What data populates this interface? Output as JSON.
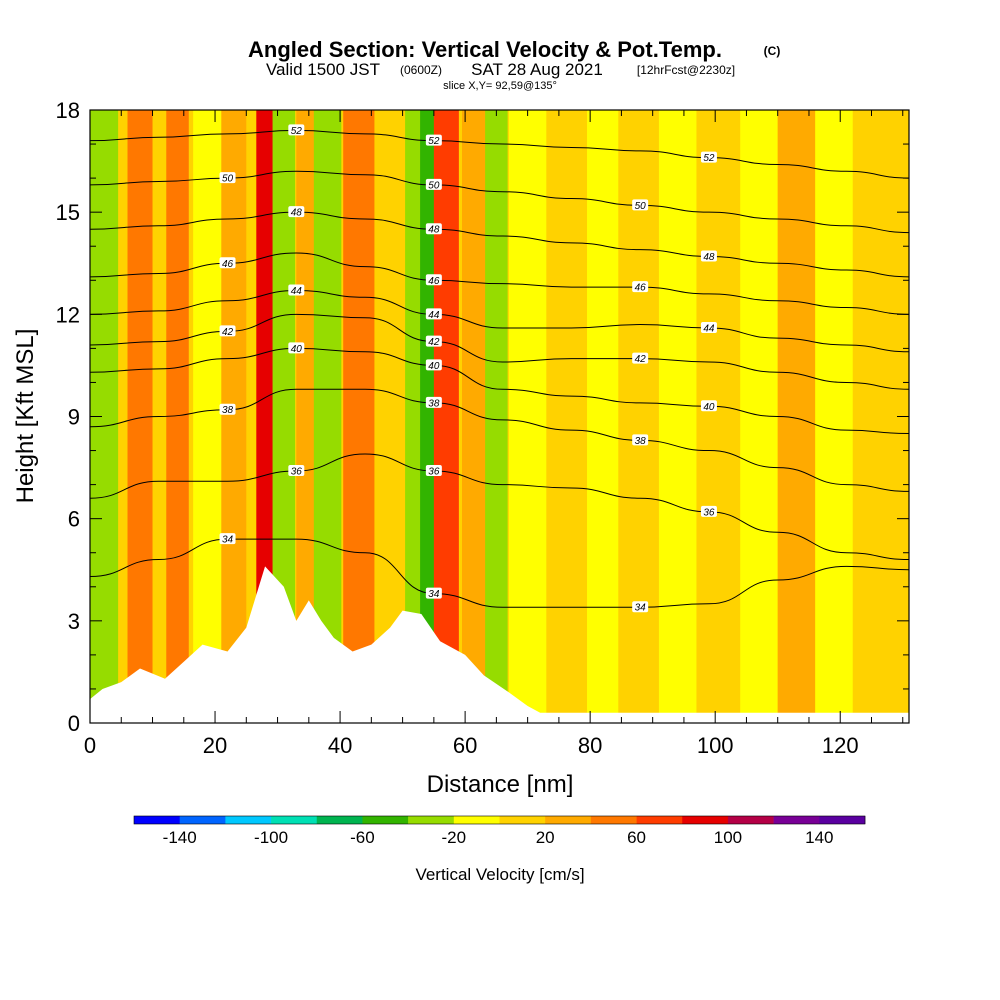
{
  "chart_data": {
    "type": "heatmap",
    "title": "Angled Section: Vertical Velocity & Pot.Temp.",
    "title_units": "(C)",
    "subtitle": {
      "valid": "Valid 1500 JST",
      "zulu": "(0600Z)",
      "date": "SAT 28 Aug 2021",
      "forecast": "[12hrFcst@2230z]"
    },
    "slice_label": "slice X,Y= 92,59@135°",
    "xlabel": "Distance [nm]",
    "ylabel": "Height [Kft MSL]",
    "xlim": [
      0,
      131
    ],
    "ylim": [
      0,
      18
    ],
    "x_ticks": [
      "0",
      "20",
      "40",
      "60",
      "80",
      "100",
      "120"
    ],
    "x_tick_values": [
      0,
      20,
      40,
      60,
      80,
      100,
      120
    ],
    "y_ticks": [
      "0",
      "3",
      "6",
      "9",
      "12",
      "15",
      "18"
    ],
    "y_tick_values": [
      0,
      3,
      6,
      9,
      12,
      15,
      18
    ],
    "colorbar": {
      "title": "Vertical Velocity [cm/s]",
      "min": -160,
      "max": 160,
      "labels": [
        "-140",
        "-100",
        "-60",
        "-20",
        "20",
        "60",
        "100",
        "140"
      ],
      "label_values": [
        -140,
        -100,
        -60,
        -20,
        20,
        60,
        100,
        140
      ],
      "colors": [
        "#0000ff",
        "#0064ff",
        "#00c8ff",
        "#00e0b4",
        "#00b450",
        "#32b400",
        "#96dc00",
        "#ffff00",
        "#ffd200",
        "#ffaa00",
        "#ff7800",
        "#ff3c00",
        "#e60000",
        "#b40046",
        "#780096",
        "#5a00a0"
      ]
    },
    "velocity_columns": [
      {
        "x": 2,
        "w": 2.5,
        "v": -25
      },
      {
        "x": 8,
        "w": 2.0,
        "v": 40
      },
      {
        "x": 14,
        "w": 1.8,
        "v": 50
      },
      {
        "x": 19,
        "w": 2.5,
        "v": -10
      },
      {
        "x": 23,
        "w": 2.0,
        "v": 20
      },
      {
        "x": 28,
        "w": 1.4,
        "v": 95
      },
      {
        "x": 31,
        "w": 1.8,
        "v": -30
      },
      {
        "x": 35,
        "w": 2.0,
        "v": 30
      },
      {
        "x": 38,
        "w": 2.2,
        "v": -25
      },
      {
        "x": 43,
        "w": 2.5,
        "v": 45
      },
      {
        "x": 48,
        "w": 2.5,
        "v": 10
      },
      {
        "x": 52,
        "w": 1.6,
        "v": -35
      },
      {
        "x": 54,
        "w": 1.2,
        "v": -60
      },
      {
        "x": 57,
        "w": 2.0,
        "v": 60
      },
      {
        "x": 62,
        "w": 2.5,
        "v": 20
      },
      {
        "x": 65,
        "w": 1.8,
        "v": -30
      },
      {
        "x": 70,
        "w": 3.0,
        "v": -15
      },
      {
        "x": 76,
        "w": 3.0,
        "v": 10
      },
      {
        "x": 82,
        "w": 2.5,
        "v": -15
      },
      {
        "x": 88,
        "w": 3.0,
        "v": 10
      },
      {
        "x": 94,
        "w": 3.0,
        "v": -15
      },
      {
        "x": 101,
        "w": 3.0,
        "v": 15
      },
      {
        "x": 107,
        "w": 3.0,
        "v": -10
      },
      {
        "x": 113,
        "w": 3.0,
        "v": 20
      },
      {
        "x": 119,
        "w": 3.0,
        "v": -15
      },
      {
        "x": 126,
        "w": 3.0,
        "v": 15
      }
    ],
    "contours": [
      {
        "label": "34",
        "y": [
          4.3,
          4.8,
          5.4,
          5.4,
          5.0,
          3.8,
          3.4,
          3.4,
          3.4,
          3.5,
          4.2,
          4.6,
          4.5
        ]
      },
      {
        "label": "36",
        "y": [
          6.6,
          7.1,
          7.1,
          7.4,
          7.9,
          7.4,
          7.0,
          6.9,
          6.6,
          6.2,
          5.6,
          5.0,
          4.8
        ]
      },
      {
        "label": "38",
        "y": [
          8.7,
          9.0,
          9.2,
          9.8,
          9.8,
          9.4,
          8.9,
          8.6,
          8.3,
          8.0,
          7.5,
          7.0,
          6.8
        ]
      },
      {
        "label": "40",
        "y": [
          10.3,
          10.4,
          10.7,
          11.0,
          10.9,
          10.5,
          9.8,
          9.6,
          9.4,
          9.3,
          9.0,
          8.6,
          8.5
        ]
      },
      {
        "label": "42",
        "y": [
          11.1,
          11.2,
          11.5,
          12.0,
          11.9,
          11.2,
          10.6,
          10.7,
          10.7,
          10.6,
          10.3,
          10.0,
          9.8
        ]
      },
      {
        "label": "44",
        "y": [
          12.0,
          12.1,
          12.4,
          12.7,
          12.5,
          12.0,
          11.6,
          11.6,
          11.7,
          11.6,
          11.3,
          11.1,
          10.9
        ]
      },
      {
        "label": "46",
        "y": [
          13.1,
          13.2,
          13.5,
          13.8,
          13.4,
          13.0,
          12.9,
          12.8,
          12.8,
          12.6,
          12.4,
          12.2,
          12.0
        ]
      },
      {
        "label": "48",
        "y": [
          14.5,
          14.6,
          14.8,
          15.0,
          14.8,
          14.5,
          14.3,
          14.1,
          13.9,
          13.7,
          13.5,
          13.3,
          13.1
        ]
      },
      {
        "label": "50",
        "y": [
          15.8,
          15.9,
          16.0,
          16.2,
          16.1,
          15.8,
          15.6,
          15.4,
          15.2,
          15.0,
          14.8,
          14.6,
          14.4
        ]
      },
      {
        "label": "52",
        "y": [
          17.1,
          17.2,
          17.3,
          17.4,
          17.3,
          17.1,
          17.0,
          16.9,
          16.8,
          16.6,
          16.4,
          16.2,
          16.0
        ]
      }
    ],
    "contour_x": [
      0,
      11,
      22,
      33,
      44,
      55,
      66,
      77,
      88,
      99,
      110,
      121,
      131
    ],
    "terrain": [
      {
        "x": 0,
        "h": 0.7
      },
      {
        "x": 2,
        "h": 1.0
      },
      {
        "x": 5,
        "h": 1.2
      },
      {
        "x": 8,
        "h": 1.6
      },
      {
        "x": 12,
        "h": 1.3
      },
      {
        "x": 15,
        "h": 1.8
      },
      {
        "x": 18,
        "h": 2.3
      },
      {
        "x": 22,
        "h": 2.1
      },
      {
        "x": 25,
        "h": 2.8
      },
      {
        "x": 27,
        "h": 4.0
      },
      {
        "x": 28,
        "h": 4.6
      },
      {
        "x": 31,
        "h": 4.0
      },
      {
        "x": 33,
        "h": 3.0
      },
      {
        "x": 35,
        "h": 3.6
      },
      {
        "x": 37,
        "h": 3.0
      },
      {
        "x": 39,
        "h": 2.5
      },
      {
        "x": 42,
        "h": 2.1
      },
      {
        "x": 45,
        "h": 2.3
      },
      {
        "x": 48,
        "h": 2.8
      },
      {
        "x": 50,
        "h": 3.3
      },
      {
        "x": 53,
        "h": 3.2
      },
      {
        "x": 56,
        "h": 2.4
      },
      {
        "x": 60,
        "h": 2.0
      },
      {
        "x": 63,
        "h": 1.4
      },
      {
        "x": 67,
        "h": 0.9
      },
      {
        "x": 70,
        "h": 0.5
      },
      {
        "x": 72,
        "h": 0.3
      },
      {
        "x": 131,
        "h": 0.3
      }
    ]
  }
}
